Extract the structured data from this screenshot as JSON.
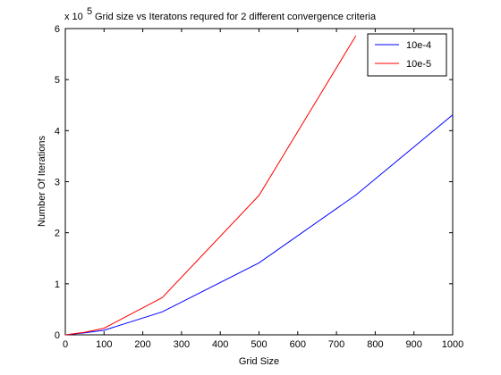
{
  "chart_data": {
    "type": "line",
    "title": "Grid size vs Iteratons requred for 2 different convergence criteria",
    "xlabel": "Grid Size",
    "ylabel": "Number Of Iterations",
    "y_exponent_base": "x 10",
    "y_exponent_power": "5",
    "xlim": [
      0,
      1000
    ],
    "ylim": [
      0,
      6
    ],
    "xticks": [
      0,
      100,
      200,
      300,
      400,
      500,
      600,
      700,
      800,
      900,
      1000
    ],
    "yticks": [
      0,
      1,
      2,
      3,
      4,
      5,
      6
    ],
    "grid": false,
    "legend_position": "top-right",
    "series": [
      {
        "name": "10e-4",
        "color": "#0000ff",
        "x": [
          0,
          50,
          100,
          250,
          500,
          750,
          1000
        ],
        "y": [
          0,
          0.04,
          0.09,
          0.45,
          1.41,
          2.74,
          4.31
        ]
      },
      {
        "name": "10e-5",
        "color": "#ff0000",
        "x": [
          0,
          50,
          100,
          250,
          500,
          750
        ],
        "y": [
          0,
          0.05,
          0.13,
          0.73,
          2.73,
          5.86
        ]
      }
    ]
  }
}
